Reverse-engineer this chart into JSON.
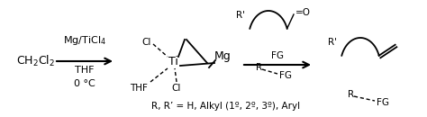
{
  "bg_color": "#ffffff",
  "fig_width": 4.74,
  "fig_height": 1.3,
  "dpi": 100,
  "ch2cl2_text": "CH$_2$Cl$_2$",
  "label_mg_text": "Mg/TiCl$_4$",
  "label_thf_text": "THF",
  "label_0c_text": "0 °C",
  "label_r_bottom_text": "R, R’ = H, Alkyl (1º, 2º, 3º), Aryl",
  "fontsize_main": 9,
  "fontsize_label": 8,
  "fontsize_small": 7.5
}
